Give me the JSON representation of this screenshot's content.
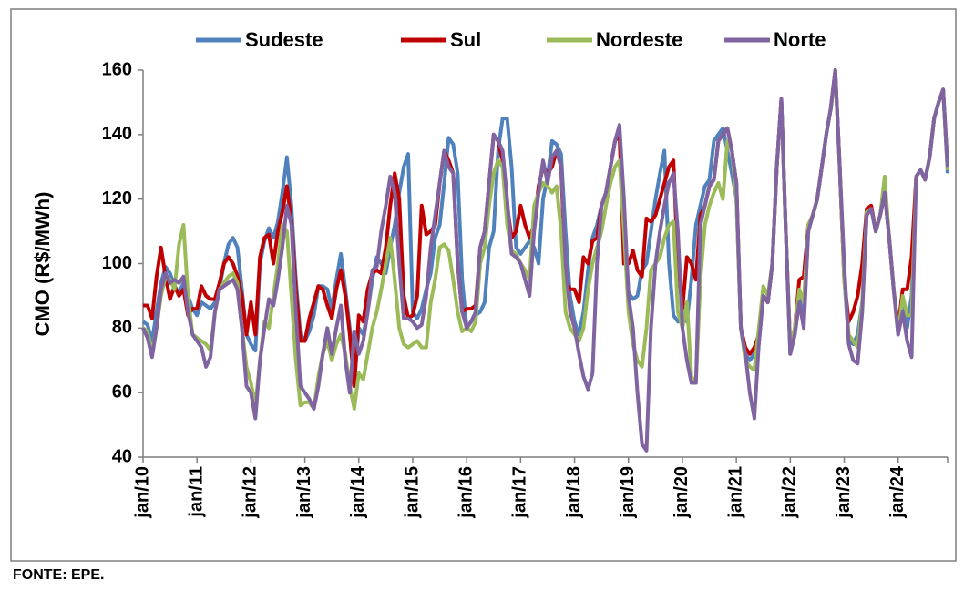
{
  "chart_data": {
    "type": "line",
    "y_label": "CMO (R$/MWh)",
    "source": "FONTE: EPE.",
    "categories": [
      "jan/10",
      null,
      null,
      null,
      null,
      null,
      null,
      null,
      null,
      null,
      null,
      null,
      "jan/11",
      null,
      null,
      null,
      null,
      null,
      null,
      null,
      null,
      null,
      null,
      null,
      "jan/12",
      null,
      null,
      null,
      null,
      null,
      null,
      null,
      null,
      null,
      null,
      null,
      "jan/13",
      null,
      null,
      null,
      null,
      null,
      null,
      null,
      null,
      null,
      null,
      null,
      "jan/14",
      null,
      null,
      null,
      null,
      null,
      null,
      null,
      null,
      null,
      null,
      null,
      "jan/15",
      null,
      null,
      null,
      null,
      null,
      null,
      null,
      null,
      null,
      null,
      null,
      "jan/16",
      null,
      null,
      null,
      null,
      null,
      null,
      null,
      null,
      null,
      null,
      null,
      "jan/17",
      null,
      null,
      null,
      null,
      null,
      null,
      null,
      null,
      null,
      null,
      null,
      "jan/18",
      null,
      null,
      null,
      null,
      null,
      null,
      null,
      null,
      null,
      null,
      null,
      "jan/19",
      null,
      null,
      null,
      null,
      null,
      null,
      null,
      null,
      null,
      null,
      null,
      "jan/20",
      null,
      null,
      null,
      null,
      null,
      null,
      null,
      null,
      null,
      null,
      null,
      "jan/21",
      null,
      null,
      null,
      null,
      null,
      null,
      null,
      null,
      null,
      null,
      null,
      "jan/22",
      null,
      null,
      null,
      null,
      null,
      null,
      null,
      null,
      null,
      null,
      null,
      "jan/23",
      null,
      null,
      null,
      null,
      null,
      null,
      null,
      null,
      null,
      null,
      null,
      "jan/24",
      null,
      null,
      null,
      null,
      null,
      null,
      null,
      null,
      null,
      null,
      null
    ],
    "series": [
      {
        "name": "Sudeste",
        "color": "#4f81bd",
        "values": [
          82,
          81,
          76,
          85,
          94,
          99,
          97,
          93,
          91,
          94,
          90,
          86,
          84,
          88,
          87,
          86,
          88,
          92,
          100,
          106,
          108,
          105,
          92,
          78,
          75,
          73,
          100,
          107,
          111,
          108,
          113,
          122,
          133,
          118,
          95,
          78,
          76,
          79,
          84,
          93,
          93,
          92,
          86,
          95,
          103,
          92,
          80,
          63,
          80,
          78,
          85,
          95,
          102,
          100,
          97,
          105,
          112,
          122,
          130,
          134,
          85,
          83,
          86,
          92,
          97,
          108,
          112,
          125,
          139,
          137,
          128,
          95,
          80,
          82,
          84,
          85,
          88,
          105,
          110,
          135,
          145,
          145,
          130,
          105,
          103,
          105,
          107,
          105,
          100,
          120,
          127,
          138,
          137,
          134,
          110,
          90,
          82,
          78,
          85,
          98,
          108,
          112,
          118,
          122,
          130,
          138,
          142,
          115,
          91,
          89,
          90,
          98,
          100,
          110,
          120,
          128,
          135,
          100,
          84,
          82,
          84,
          82,
          95,
          112,
          118,
          124,
          126,
          138,
          140,
          142,
          135,
          128,
          120,
          80,
          72,
          70,
          72,
          75,
          90,
          88,
          100,
          130,
          151,
          110,
          72,
          78,
          90,
          82,
          110,
          115,
          120,
          130,
          140,
          148,
          159,
          130,
          95,
          76,
          75,
          78,
          88,
          115,
          118,
          110,
          115,
          122,
          108,
          92,
          78,
          88,
          80,
          90,
          127,
          129,
          126,
          133,
          145,
          150,
          154,
          128
        ]
      },
      {
        "name": "Sul",
        "color": "#c00000",
        "values": [
          87,
          87,
          83,
          96,
          105,
          96,
          89,
          93,
          90,
          92,
          84,
          86,
          86,
          93,
          90,
          89,
          89,
          94,
          100,
          102,
          100,
          96,
          90,
          78,
          88,
          78,
          102,
          108,
          109,
          100,
          110,
          116,
          124,
          113,
          92,
          76,
          76,
          83,
          88,
          93,
          92,
          87,
          83,
          92,
          98,
          90,
          78,
          62,
          84,
          82,
          92,
          97,
          98,
          97,
          105,
          118,
          128,
          120,
          90,
          83,
          84,
          90,
          118,
          109,
          110,
          112,
          125,
          135,
          132,
          128,
          100,
          85,
          86,
          86,
          87,
          105,
          110,
          125,
          140,
          138,
          132,
          118,
          108,
          110,
          118,
          112,
          108,
          112,
          124,
          130,
          128,
          130,
          135,
          130,
          95,
          92,
          92,
          88,
          102,
          100,
          107,
          108,
          118,
          122,
          130,
          138,
          140,
          100,
          100,
          104,
          98,
          96,
          114,
          113,
          115,
          120,
          125,
          130,
          132,
          100,
          86,
          102,
          100,
          95,
          115,
          118,
          124,
          126,
          138,
          140,
          142,
          135,
          125,
          80,
          74,
          72,
          74,
          78,
          90,
          88,
          100,
          130,
          151,
          110,
          74,
          80,
          95,
          96,
          112,
          115,
          120,
          130,
          140,
          148,
          160,
          130,
          95,
          82,
          85,
          90,
          100,
          117,
          118,
          110,
          115,
          122,
          108,
          92,
          80,
          92,
          92,
          102,
          127,
          129,
          126,
          133,
          145,
          150,
          154,
          130
        ]
      },
      {
        "name": "Nordeste",
        "color": "#9bbb59",
        "values": [
          80,
          79,
          72,
          80,
          90,
          96,
          95,
          92,
          106,
          112,
          90,
          78,
          77,
          76,
          75,
          73,
          85,
          92,
          94,
          96,
          97,
          94,
          80,
          68,
          63,
          56,
          70,
          82,
          80,
          90,
          100,
          112,
          110,
          90,
          70,
          56,
          57,
          57,
          55,
          65,
          72,
          76,
          70,
          75,
          78,
          72,
          62,
          55,
          66,
          64,
          72,
          80,
          85,
          92,
          100,
          108,
          95,
          80,
          75,
          74,
          75,
          76,
          74,
          74,
          88,
          95,
          105,
          106,
          104,
          95,
          85,
          79,
          80,
          79,
          82,
          100,
          105,
          118,
          128,
          132,
          130,
          112,
          104,
          103,
          100,
          98,
          95,
          118,
          122,
          125,
          124,
          122,
          124,
          110,
          85,
          80,
          78,
          76,
          80,
          92,
          100,
          105,
          110,
          118,
          125,
          130,
          132,
          110,
          85,
          75,
          70,
          68,
          80,
          98,
          100,
          102,
          108,
          112,
          113,
          85,
          80,
          88,
          65,
          63,
          95,
          112,
          118,
          122,
          125,
          120,
          138,
          135,
          120,
          80,
          70,
          68,
          67,
          80,
          93,
          90,
          100,
          130,
          150,
          110,
          75,
          80,
          92,
          88,
          112,
          115,
          120,
          130,
          140,
          148,
          158,
          130,
          95,
          78,
          76,
          74,
          88,
          116,
          117,
          110,
          115,
          127,
          108,
          92,
          78,
          90,
          84,
          84,
          127,
          129,
          126,
          133,
          145,
          150,
          154,
          129
        ]
      },
      {
        "name": "Norte",
        "color": "#8064a2",
        "values": [
          80,
          77,
          71,
          80,
          92,
          97,
          94,
          95,
          94,
          96,
          85,
          78,
          76,
          74,
          68,
          71,
          85,
          92,
          93,
          94,
          95,
          92,
          80,
          62,
          60,
          52,
          70,
          80,
          89,
          87,
          95,
          105,
          118,
          112,
          85,
          62,
          60,
          58,
          55,
          62,
          72,
          80,
          72,
          80,
          87,
          70,
          60,
          79,
          72,
          76,
          85,
          98,
          99,
          110,
          118,
          127,
          122,
          100,
          83,
          83,
          82,
          80,
          81,
          90,
          105,
          115,
          125,
          135,
          130,
          128,
          100,
          85,
          80,
          82,
          85,
          105,
          110,
          125,
          140,
          138,
          135,
          120,
          103,
          102,
          100,
          95,
          90,
          110,
          122,
          132,
          125,
          133,
          135,
          130,
          100,
          85,
          80,
          72,
          65,
          61,
          66,
          100,
          118,
          122,
          130,
          138,
          143,
          120,
          90,
          80,
          60,
          44,
          42,
          80,
          100,
          110,
          118,
          125,
          128,
          110,
          80,
          70,
          63,
          63,
          112,
          118,
          124,
          126,
          138,
          140,
          142,
          135,
          125,
          80,
          72,
          60,
          52,
          75,
          90,
          88,
          100,
          130,
          151,
          110,
          72,
          78,
          88,
          80,
          110,
          115,
          120,
          130,
          140,
          148,
          160,
          130,
          100,
          75,
          70,
          69,
          85,
          115,
          117,
          110,
          115,
          122,
          108,
          92,
          78,
          85,
          76,
          71,
          127,
          129,
          126,
          133,
          145,
          150,
          154,
          130
        ]
      }
    ],
    "ylim": [
      40,
      160
    ],
    "yticks": [
      40,
      60,
      80,
      100,
      120,
      140,
      160
    ],
    "grid": false
  }
}
